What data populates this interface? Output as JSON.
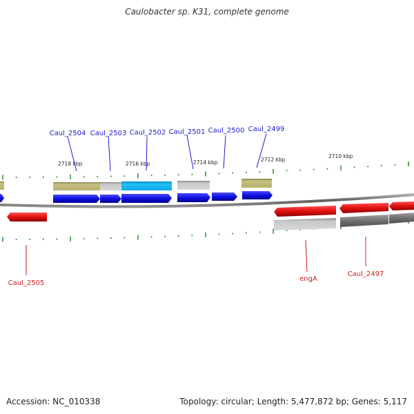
{
  "title": "Caulobacter sp. K31, complete genome",
  "footer": {
    "accession": "Accession: NC_010338",
    "summary": "Topology: circular; Length: 5,477,872 bp; Genes: 5,117"
  },
  "scale_labels": [
    "2718 kbp",
    "2716 kbp",
    "2714 kbp",
    "2712 kbp",
    "2710 kbp"
  ],
  "genes_top": [
    "Caul_2504",
    "Caul_2503",
    "Caul_2502",
    "Caul_2501",
    "Caul_2500",
    "Caul_2499"
  ],
  "genes_bottom": [
    "Caul_2505",
    "engA",
    "Caul_2497"
  ],
  "colors": {
    "top_strand_label": "#1a1acc",
    "bottom_strand_label": "#cc1a1a",
    "forward_gene": "#1010e0",
    "reverse_gene": "#e01010",
    "tick": "#2a8a2a",
    "backbone": "#707070",
    "highlight": "#18b8f0",
    "olive_feature": "#b8b070"
  }
}
